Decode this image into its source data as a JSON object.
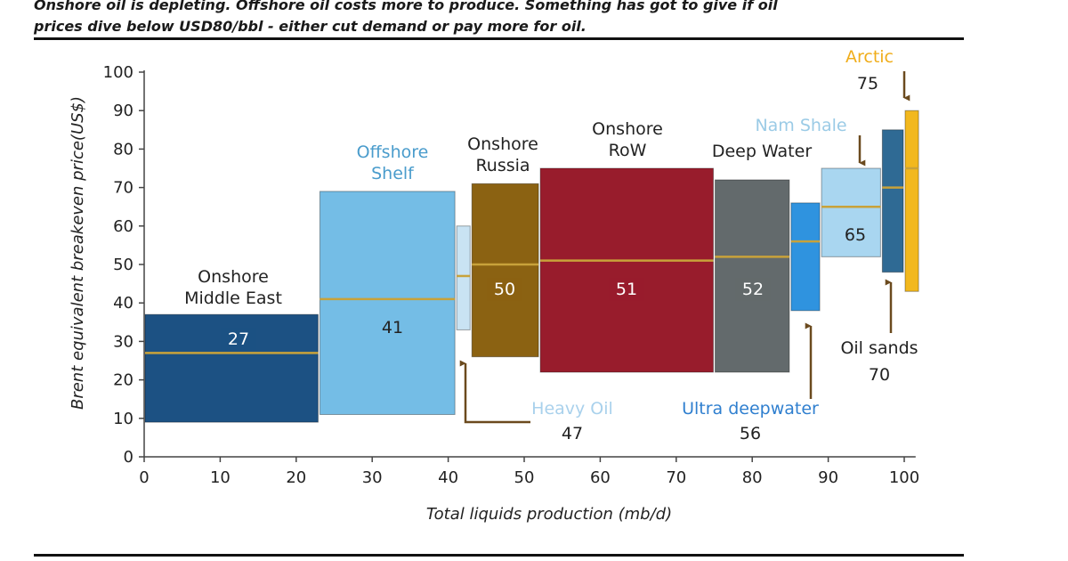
{
  "caption": {
    "line1": "Onshore oil is depleting. Offshore oil costs more to produce. Something has got to give if oil",
    "line2": "prices dive below USD80/bbl - either cut demand or pay more for oil."
  },
  "chart_data": {
    "type": "bar",
    "title": "",
    "xlabel": "Total liquids production (mb/d)",
    "ylabel": "Brent equivalent breakeven price(US$)",
    "xlim": [
      0,
      100
    ],
    "ylim": [
      0,
      100
    ],
    "xticks": [
      "0",
      "10",
      "20",
      "30",
      "40",
      "50",
      "60",
      "70",
      "80",
      "90",
      "100"
    ],
    "yticks": [
      "0",
      "10",
      "20",
      "30",
      "40",
      "50",
      "60",
      "70",
      "80",
      "90",
      "100"
    ],
    "grid": false,
    "colors": {
      "axis": "#444444",
      "median_line": "#c8a23a",
      "arrow": "#6b4a1e"
    },
    "segments": [
      {
        "name_lines": [
          "Onshore",
          "Middle East"
        ],
        "value": "27",
        "value_num": 27,
        "x0": 0,
        "x1": 23,
        "low": 9,
        "high": 37,
        "color": "#1c5183",
        "label_color": "#222222",
        "value_color": "#ffffff"
      },
      {
        "name_lines": [
          "Offshore",
          "Shelf"
        ],
        "value": "41",
        "value_num": 41,
        "x0": 23,
        "x1": 41,
        "low": 11,
        "high": 69,
        "color": "#74bde6",
        "label_color": "#4a9ccc",
        "value_color": "#222222"
      },
      {
        "name_lines": [
          "Heavy Oil"
        ],
        "value": "47",
        "value_num": 47,
        "x0": 41,
        "x1": 43,
        "low": 33,
        "high": 60,
        "color": "#c9e3f3",
        "label_color": "#a9d1ec",
        "value_color": "#222222"
      },
      {
        "name_lines": [
          "Onshore",
          "Russia"
        ],
        "value": "50",
        "value_num": 50,
        "x0": 43,
        "x1": 52,
        "low": 26,
        "high": 71,
        "color": "#8b6212",
        "label_color": "#222222",
        "value_color": "#ffffff"
      },
      {
        "name_lines": [
          "Onshore",
          "RoW"
        ],
        "value": "51",
        "value_num": 51,
        "x0": 52,
        "x1": 75,
        "low": 22,
        "high": 75,
        "color": "#981c2c",
        "label_color": "#222222",
        "value_color": "#ffffff"
      },
      {
        "name_lines": [
          "Deep Water"
        ],
        "value": "52",
        "value_num": 52,
        "x0": 75,
        "x1": 85,
        "low": 22,
        "high": 72,
        "color": "#636a6c",
        "label_color": "#222222",
        "value_color": "#ffffff"
      },
      {
        "name_lines": [
          "Ultra deepwater"
        ],
        "value": "56",
        "value_num": 56,
        "x0": 85,
        "x1": 89,
        "low": 38,
        "high": 66,
        "color": "#2f93df",
        "label_color": "#2f7fcf",
        "value_color": "#222222"
      },
      {
        "name_lines": [
          "Nam Shale"
        ],
        "value": "65",
        "value_num": 65,
        "x0": 89,
        "x1": 97,
        "low": 52,
        "high": 75,
        "color": "#a9d6f0",
        "label_color": "#9bcbe6",
        "value_color": "#222222"
      },
      {
        "name_lines": [
          "Oil sands"
        ],
        "value": "70",
        "value_num": 70,
        "x0": 97,
        "x1": 100,
        "low": 48,
        "high": 85,
        "color": "#2f6a94",
        "label_color": "#222222",
        "value_color": "#222222"
      },
      {
        "name_lines": [
          "Arctic"
        ],
        "value": "75",
        "value_num": 75,
        "x0": 100,
        "x1": 102,
        "low": 43,
        "high": 90,
        "color": "#f2b81e",
        "label_color": "#f0ad1a",
        "value_color": "#222222"
      }
    ]
  }
}
